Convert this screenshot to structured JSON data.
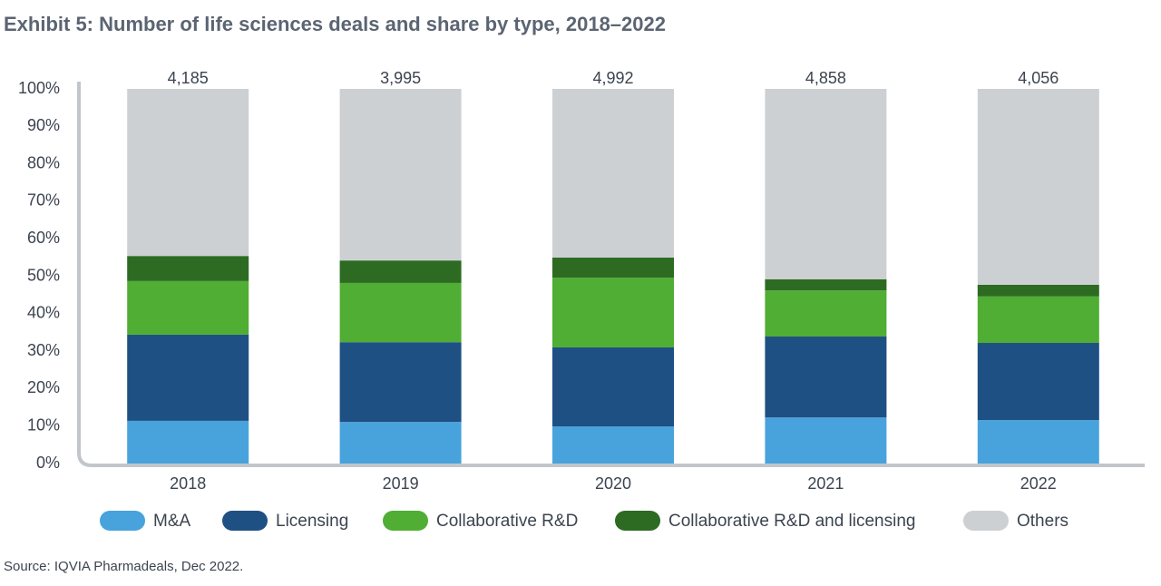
{
  "chart_data": {
    "type": "stacked_bar",
    "title": "Exhibit 5: Number of life sciences deals and share by type, 2018–2022",
    "source": "Source: IQVIA Pharmadeals, Dec 2022.",
    "categories": [
      "2018",
      "2019",
      "2020",
      "2021",
      "2022"
    ],
    "series": [
      {
        "name": "M&A",
        "color": "#48a3dc",
        "values": [
          11.4,
          11.1,
          9.9,
          12.3,
          11.6
        ]
      },
      {
        "name": "Licensing",
        "color": "#1f5084",
        "values": [
          23.0,
          21.3,
          21.1,
          21.6,
          20.6
        ]
      },
      {
        "name": "Collaborative R&D",
        "color": "#4fae33",
        "values": [
          14.3,
          15.8,
          18.6,
          12.3,
          12.4
        ]
      },
      {
        "name": "Collaborative R&D and licensing",
        "color": "#2d6b23",
        "values": [
          6.7,
          6.0,
          5.4,
          3.0,
          3.1
        ]
      },
      {
        "name": "Others",
        "color": "#cdd0d3",
        "values": [
          44.6,
          45.8,
          45.0,
          50.8,
          52.3
        ]
      }
    ],
    "totals": {
      "values": [
        4185,
        3995,
        4992,
        4858,
        4056
      ],
      "value_labels": [
        "4,185",
        "3,995",
        "4,992",
        "4,858",
        "4,056"
      ]
    },
    "ylim": [
      0,
      100
    ],
    "yticks": [
      {
        "value": 0,
        "label": "0%"
      },
      {
        "value": 10,
        "label": "10%"
      },
      {
        "value": 20,
        "label": "20%"
      },
      {
        "value": 30,
        "label": "30%"
      },
      {
        "value": 40,
        "label": "40%"
      },
      {
        "value": 50,
        "label": "50%"
      },
      {
        "value": 60,
        "label": "60%"
      },
      {
        "value": 70,
        "label": "70%"
      },
      {
        "value": 80,
        "label": "80%"
      },
      {
        "value": 90,
        "label": "90%"
      },
      {
        "value": 100,
        "label": "100%"
      }
    ],
    "grid": false,
    "legend": "bottom"
  }
}
